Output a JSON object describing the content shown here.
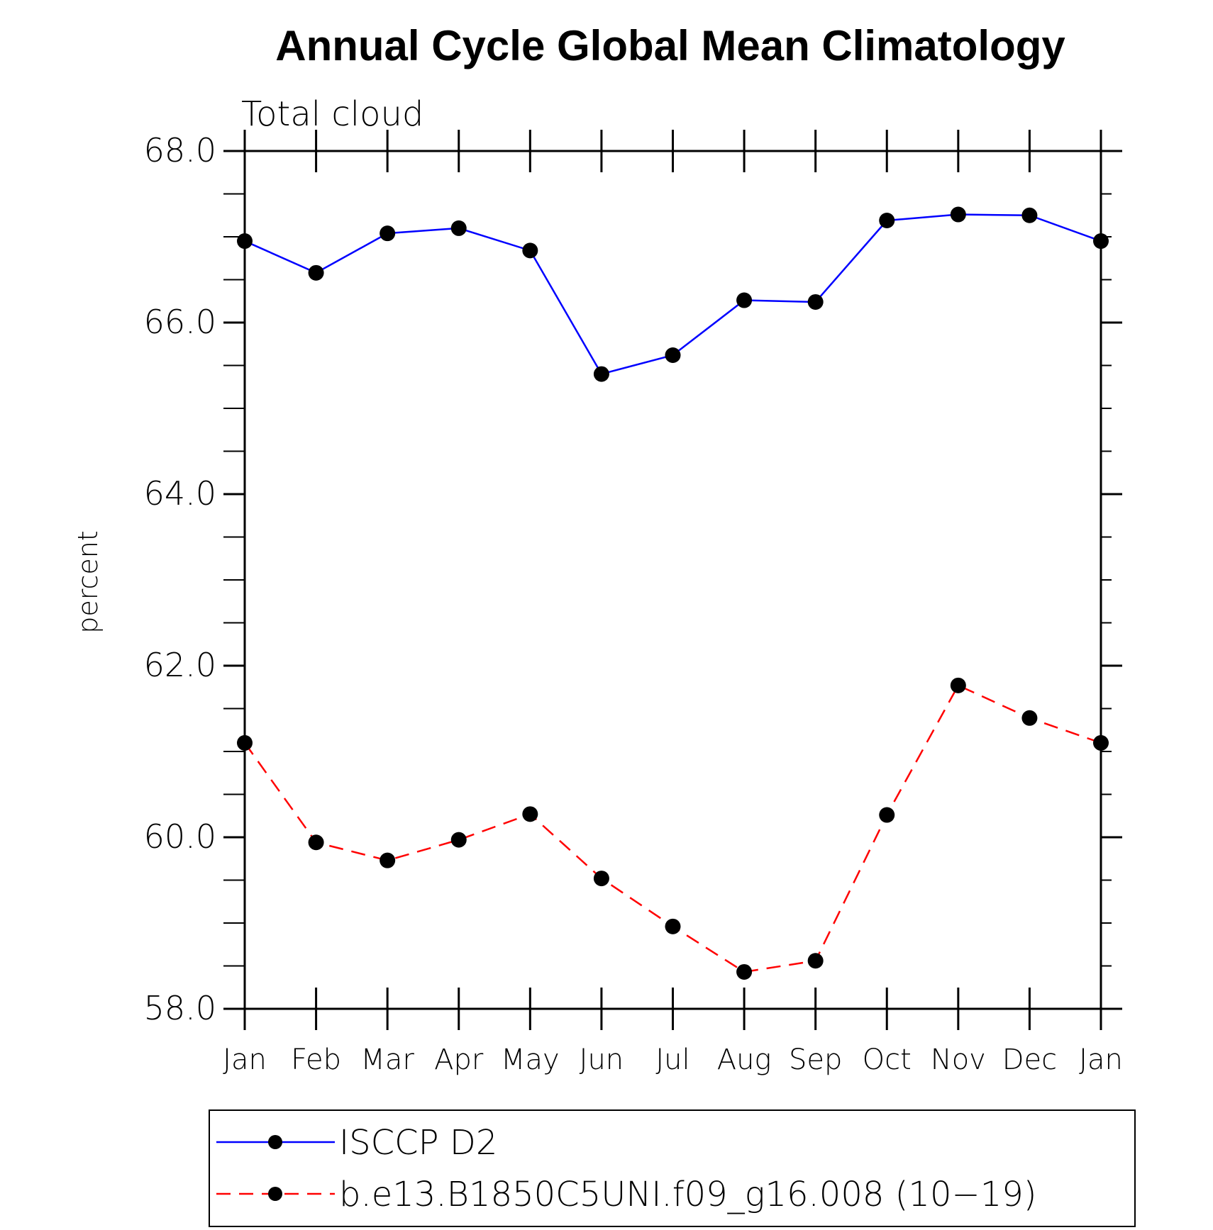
{
  "chart_data": {
    "type": "line",
    "title": "Annual Cycle Global Mean Climatology",
    "subtitle": "Total cloud",
    "xlabel": "",
    "ylabel": "percent",
    "ylim": [
      58.0,
      68.0
    ],
    "yticks": [
      "58.0",
      "60.0",
      "62.0",
      "64.0",
      "66.0",
      "68.0"
    ],
    "yminor_step": 0.5,
    "categories": [
      "Jan",
      "Feb",
      "Mar",
      "Apr",
      "May",
      "Jun",
      "Jul",
      "Aug",
      "Sep",
      "Oct",
      "Nov",
      "Dec",
      "Jan"
    ],
    "legend_position": "bottom",
    "series": [
      {
        "name": "ISCCP D2",
        "color": "#0000ff",
        "dash": "solid",
        "values": [
          66.95,
          66.58,
          67.04,
          67.1,
          66.84,
          65.4,
          65.62,
          66.26,
          66.24,
          67.19,
          67.26,
          67.25,
          66.95
        ]
      },
      {
        "name": "b.e13.B1850C5UNI.f09_g16.008 (10−19)",
        "color": "#ff0000",
        "dash": "dashed",
        "values": [
          61.1,
          59.94,
          59.73,
          59.97,
          60.27,
          59.52,
          58.96,
          58.43,
          58.56,
          60.26,
          61.77,
          61.39,
          61.1
        ]
      }
    ]
  }
}
